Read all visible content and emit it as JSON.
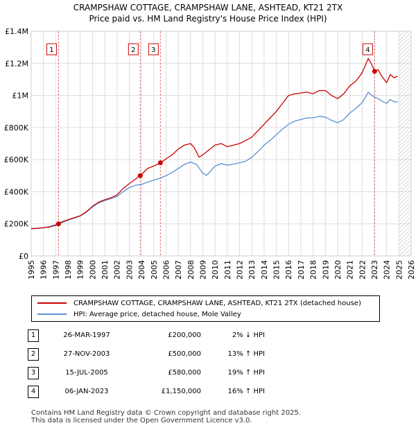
{
  "title_line1": "CRAMPSHAW COTTAGE, CRAMPSHAW LANE, ASHTEAD, KT21 2TX",
  "title_line2": "Price paid vs. HM Land Registry's House Price Index (HPI)",
  "legend": {
    "property_label": "CRAMPSHAW COTTAGE, CRAMPSHAW LANE, ASHTEAD, KT21 2TX (detached house)",
    "hpi_label": "HPI: Average price, detached house, Mole Valley"
  },
  "colors": {
    "property": "#cc0000",
    "hpi": "#5b8fd0",
    "grid": "#dddddd",
    "vline": "#e06666",
    "future_hatch": "#999999"
  },
  "sales": [
    {
      "num": "1",
      "date": "26-MAR-1997",
      "price": "£200,000",
      "hpi": "2% ↓ HPI"
    },
    {
      "num": "2",
      "date": "27-NOV-2003",
      "price": "£500,000",
      "hpi": "13% ↑ HPI"
    },
    {
      "num": "3",
      "date": "15-JUL-2005",
      "price": "£580,000",
      "hpi": "19% ↑ HPI"
    },
    {
      "num": "4",
      "date": "06-JAN-2023",
      "price": "£1,150,000",
      "hpi": "16% ↑ HPI"
    }
  ],
  "footer_line1": "Contains HM Land Registry data © Crown copyright and database right 2025.",
  "footer_line2": "This data is licensed under the Open Government Licence v3.0.",
  "chart_data": {
    "type": "line",
    "title": "CRAMPSHAW COTTAGE, CRAMPSHAW LANE, ASHTEAD, KT21 2TX",
    "subtitle": "Price paid vs. HM Land Registry's House Price Index (HPI)",
    "xlabel": "",
    "ylabel": "",
    "xlim": [
      1995,
      2026
    ],
    "ylim": [
      0,
      1400000
    ],
    "x_ticks": [
      1995,
      1996,
      1997,
      1998,
      1999,
      2000,
      2001,
      2002,
      2003,
      2004,
      2005,
      2006,
      2007,
      2008,
      2009,
      2010,
      2011,
      2012,
      2013,
      2014,
      2015,
      2016,
      2017,
      2018,
      2019,
      2020,
      2021,
      2022,
      2023,
      2024,
      2025,
      2026
    ],
    "y_ticks": [
      0,
      200000,
      400000,
      600000,
      800000,
      1000000,
      1200000,
      1400000
    ],
    "y_tick_labels": [
      "£0",
      "£200K",
      "£400K",
      "£600K",
      "£800K",
      "£1M",
      "£1.2M",
      "£1.4M"
    ],
    "grid": true,
    "future_from": 2025.0,
    "series": [
      {
        "name": "CRAMPSHAW COTTAGE, CRAMPSHAW LANE, ASHTEAD, KT21 2TX (detached house)",
        "color": "#cc0000",
        "x": [
          1995.0,
          1995.5,
          1996.0,
          1996.5,
          1997.0,
          1997.23,
          1997.5,
          1998.0,
          1998.5,
          1999.0,
          1999.5,
          2000.0,
          2000.5,
          2001.0,
          2001.5,
          2002.0,
          2002.5,
          2003.0,
          2003.5,
          2003.9,
          2004.0,
          2004.5,
          2005.0,
          2005.54,
          2006.0,
          2006.5,
          2007.0,
          2007.5,
          2008.0,
          2008.3,
          2008.7,
          2009.0,
          2009.5,
          2010.0,
          2010.5,
          2011.0,
          2011.5,
          2012.0,
          2012.5,
          2013.0,
          2013.5,
          2014.0,
          2014.5,
          2015.0,
          2015.5,
          2016.0,
          2016.5,
          2017.0,
          2017.5,
          2018.0,
          2018.5,
          2019.0,
          2019.5,
          2020.0,
          2020.5,
          2021.0,
          2021.5,
          2022.0,
          2022.5,
          2022.8,
          2023.02,
          2023.3,
          2023.6,
          2024.0,
          2024.3,
          2024.6,
          2024.9
        ],
        "y": [
          170000,
          172000,
          175000,
          180000,
          190000,
          200000,
          212000,
          225000,
          238000,
          250000,
          275000,
          310000,
          335000,
          350000,
          362000,
          380000,
          420000,
          450000,
          478000,
          500000,
          508000,
          545000,
          560000,
          580000,
          605000,
          630000,
          665000,
          690000,
          700000,
          675000,
          615000,
          630000,
          660000,
          690000,
          700000,
          680000,
          690000,
          700000,
          720000,
          740000,
          780000,
          820000,
          860000,
          900000,
          950000,
          1000000,
          1010000,
          1015000,
          1020000,
          1010000,
          1030000,
          1030000,
          1000000,
          980000,
          1010000,
          1060000,
          1090000,
          1140000,
          1230000,
          1190000,
          1150000,
          1160000,
          1120000,
          1080000,
          1130000,
          1110000,
          1120000
        ]
      },
      {
        "name": "HPI: Average price, detached house, Mole Valley",
        "color": "#5b8fd0",
        "x": [
          1995.0,
          1995.5,
          1996.0,
          1996.5,
          1997.0,
          1997.5,
          1998.0,
          1998.5,
          1999.0,
          1999.5,
          2000.0,
          2000.5,
          2001.0,
          2001.5,
          2002.0,
          2002.5,
          2003.0,
          2003.5,
          2004.0,
          2004.5,
          2005.0,
          2005.5,
          2006.0,
          2006.5,
          2007.0,
          2007.5,
          2008.0,
          2008.5,
          2009.0,
          2009.3,
          2009.7,
          2010.0,
          2010.5,
          2011.0,
          2011.5,
          2012.0,
          2012.5,
          2013.0,
          2013.5,
          2014.0,
          2014.5,
          2015.0,
          2015.5,
          2016.0,
          2016.5,
          2017.0,
          2017.5,
          2018.0,
          2018.5,
          2019.0,
          2019.5,
          2020.0,
          2020.5,
          2021.0,
          2021.5,
          2022.0,
          2022.5,
          2022.8,
          2023.0,
          2023.3,
          2023.6,
          2024.0,
          2024.3,
          2024.6,
          2024.9
        ],
        "y": [
          168000,
          172000,
          176000,
          183000,
          195000,
          207000,
          222000,
          235000,
          248000,
          272000,
          305000,
          330000,
          345000,
          357000,
          370000,
          400000,
          425000,
          440000,
          445000,
          460000,
          472000,
          484000,
          500000,
          520000,
          545000,
          570000,
          585000,
          570000,
          515000,
          502000,
          535000,
          560000,
          575000,
          565000,
          572000,
          580000,
          590000,
          615000,
          650000,
          690000,
          720000,
          755000,
          790000,
          820000,
          840000,
          850000,
          860000,
          860000,
          870000,
          865000,
          845000,
          830000,
          850000,
          890000,
          920000,
          955000,
          1020000,
          1000000,
          990000,
          980000,
          965000,
          950000,
          975000,
          960000,
          960000
        ]
      }
    ],
    "sale_markers": [
      {
        "num": "1",
        "x": 1997.23,
        "y": 200000
      },
      {
        "num": "2",
        "x": 2003.9,
        "y": 500000
      },
      {
        "num": "3",
        "x": 2005.54,
        "y": 580000
      },
      {
        "num": "4",
        "x": 2023.02,
        "y": 1150000
      }
    ]
  }
}
